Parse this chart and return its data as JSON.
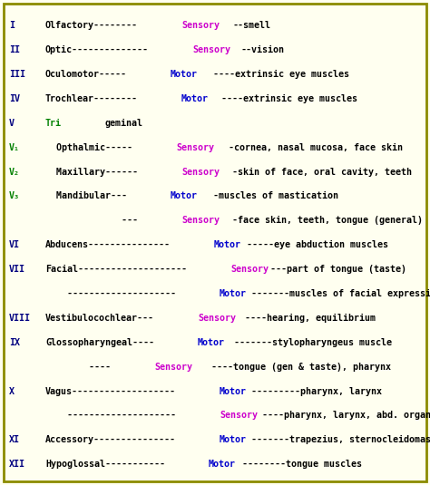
{
  "bg_color": "#fffff0",
  "border_color": "#8B8B00",
  "rows": [
    {
      "numeral": "I",
      "numeral_color": "#000080",
      "segments": [
        {
          "text": "Olfactory--------",
          "color": "#000000"
        },
        {
          "text": "Sensory",
          "color": "#CC00CC"
        },
        {
          "text": "--smell",
          "color": "#000000"
        }
      ]
    },
    {
      "numeral": "II",
      "numeral_color": "#000080",
      "segments": [
        {
          "text": "Optic--------------",
          "color": "#000000"
        },
        {
          "text": "Sensory",
          "color": "#CC00CC"
        },
        {
          "text": "--vision",
          "color": "#000000"
        }
      ]
    },
    {
      "numeral": "III",
      "numeral_color": "#000080",
      "segments": [
        {
          "text": "Oculomotor-----",
          "color": "#000000"
        },
        {
          "text": "Motor",
          "color": "#0000CD"
        },
        {
          "text": "----extrinsic eye muscles",
          "color": "#000000"
        }
      ]
    },
    {
      "numeral": "IV",
      "numeral_color": "#000080",
      "segments": [
        {
          "text": "Trochlear--------",
          "color": "#000000"
        },
        {
          "text": "Motor",
          "color": "#0000CD"
        },
        {
          "text": "----extrinsic eye muscles",
          "color": "#000000"
        }
      ]
    },
    {
      "numeral": "V",
      "numeral_color": "#000080",
      "segments": [
        {
          "text": "Tri",
          "color": "#008000"
        },
        {
          "text": "geminal",
          "color": "#000000"
        }
      ]
    },
    {
      "numeral": "V₁",
      "numeral_color": "#008000",
      "segments": [
        {
          "text": "  Opthalmic-----",
          "color": "#000000"
        },
        {
          "text": "Sensory",
          "color": "#CC00CC"
        },
        {
          "text": "-cornea, nasal mucosa, face skin",
          "color": "#000000"
        }
      ]
    },
    {
      "numeral": "V₂",
      "numeral_color": "#008000",
      "segments": [
        {
          "text": "  Maxillary------",
          "color": "#000000"
        },
        {
          "text": "Sensory",
          "color": "#CC00CC"
        },
        {
          "text": "-skin of face, oral cavity, teeth",
          "color": "#000000"
        }
      ]
    },
    {
      "numeral": "V₃",
      "numeral_color": "#008000",
      "segments": [
        {
          "text": "  Mandibular---",
          "color": "#000000"
        },
        {
          "text": "Motor",
          "color": "#0000CD"
        },
        {
          "text": "-muscles of mastication",
          "color": "#000000"
        }
      ]
    },
    {
      "numeral": "",
      "numeral_color": "#000080",
      "segments": [
        {
          "text": "              ---",
          "color": "#000000"
        },
        {
          "text": "Sensory",
          "color": "#CC00CC"
        },
        {
          "text": "-face skin, teeth, tongue (general)",
          "color": "#000000"
        }
      ]
    },
    {
      "numeral": "VI",
      "numeral_color": "#000080",
      "segments": [
        {
          "text": "Abducens---------------",
          "color": "#000000"
        },
        {
          "text": "Motor",
          "color": "#0000CD"
        },
        {
          "text": "-----eye abduction muscles",
          "color": "#000000"
        }
      ]
    },
    {
      "numeral": "VII",
      "numeral_color": "#000080",
      "segments": [
        {
          "text": "Facial--------------------",
          "color": "#000000"
        },
        {
          "text": "Sensory",
          "color": "#CC00CC"
        },
        {
          "text": "---part of tongue (taste)",
          "color": "#000000"
        }
      ]
    },
    {
      "numeral": "",
      "numeral_color": "#000080",
      "segments": [
        {
          "text": "    --------------------",
          "color": "#000000"
        },
        {
          "text": "Motor",
          "color": "#0000CD"
        },
        {
          "text": "-------muscles of facial expression",
          "color": "#000000"
        }
      ]
    },
    {
      "numeral": "VIII",
      "numeral_color": "#000080",
      "segments": [
        {
          "text": "Vestibulocochlear---",
          "color": "#000000"
        },
        {
          "text": "Sensory",
          "color": "#CC00CC"
        },
        {
          "text": "----hearing, equilibrium",
          "color": "#000000"
        }
      ]
    },
    {
      "numeral": "IX",
      "numeral_color": "#000080",
      "segments": [
        {
          "text": "Glossopharyngeal----",
          "color": "#000000"
        },
        {
          "text": "Motor",
          "color": "#0000CD"
        },
        {
          "text": "-------stylopharyngeus muscle",
          "color": "#000000"
        }
      ]
    },
    {
      "numeral": "",
      "numeral_color": "#000080",
      "segments": [
        {
          "text": "        ----",
          "color": "#000000"
        },
        {
          "text": "Sensory",
          "color": "#CC00CC"
        },
        {
          "text": "----tongue (gen & taste), pharynx",
          "color": "#000000"
        }
      ]
    },
    {
      "numeral": "X",
      "numeral_color": "#000080",
      "segments": [
        {
          "text": "Vagus-------------------",
          "color": "#000000"
        },
        {
          "text": "Motor",
          "color": "#0000CD"
        },
        {
          "text": "---------pharynx, larynx",
          "color": "#000000"
        }
      ]
    },
    {
      "numeral": "",
      "numeral_color": "#000080",
      "segments": [
        {
          "text": "    --------------------",
          "color": "#000000"
        },
        {
          "text": "Sensory",
          "color": "#CC00CC"
        },
        {
          "text": "----pharynx, larynx, abd. organs",
          "color": "#000000"
        }
      ]
    },
    {
      "numeral": "XI",
      "numeral_color": "#000080",
      "segments": [
        {
          "text": "Accessory---------------",
          "color": "#000000"
        },
        {
          "text": "Motor",
          "color": "#0000CD"
        },
        {
          "text": "-------trapezius, sternocleidomastoid",
          "color": "#000000"
        }
      ]
    },
    {
      "numeral": "XII",
      "numeral_color": "#000080",
      "segments": [
        {
          "text": "Hypoglossal-----------",
          "color": "#000000"
        },
        {
          "text": "Motor",
          "color": "#0000CD"
        },
        {
          "text": "--------tongue muscles",
          "color": "#000000"
        }
      ]
    }
  ]
}
